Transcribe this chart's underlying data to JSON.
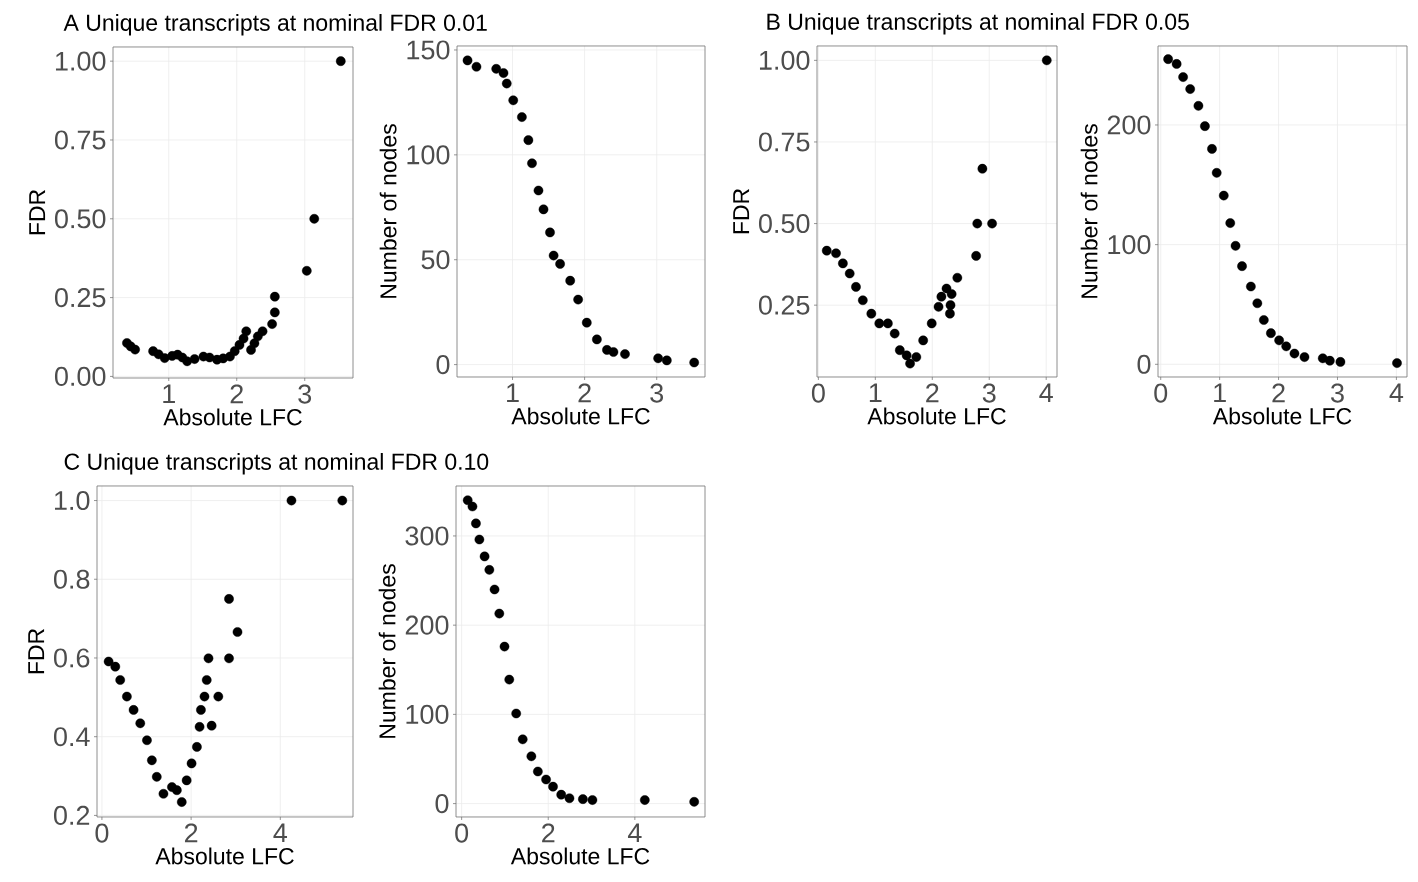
{
  "chart_data": [
    {
      "type": "scatter",
      "title": "A Unique transcripts at nominal FDR 0.01",
      "xlabel": "Absolute LFC",
      "ylabel": "FDR",
      "color": "#000000",
      "marker": "circle",
      "grid": true,
      "x": [
        0.385,
        0.44,
        0.505,
        0.77,
        0.85,
        0.94,
        1.05,
        1.13,
        1.2,
        1.27,
        1.38,
        1.51,
        1.6,
        1.71,
        1.8,
        1.9,
        1.97,
        2.04,
        2.1,
        2.14,
        2.21,
        2.26,
        2.31,
        2.38,
        2.52,
        2.56,
        2.56,
        3.03,
        3.14,
        3.53
      ],
      "values": [
        0.106,
        0.095,
        0.085,
        0.08,
        0.07,
        0.058,
        0.065,
        0.069,
        0.06,
        0.048,
        0.055,
        0.063,
        0.06,
        0.053,
        0.057,
        0.063,
        0.08,
        0.1,
        0.12,
        0.143,
        0.084,
        0.105,
        0.127,
        0.143,
        0.166,
        0.203,
        0.253,
        0.335,
        0.5,
        1.0
      ],
      "xlim": [
        0.18,
        3.71
      ],
      "ylim": [
        -0.005,
        1.045
      ],
      "xticks": [
        1,
        2,
        3
      ],
      "yticks": [
        {
          "value": 0,
          "label": "0.00"
        },
        {
          "value": 0.25,
          "label": "0.25"
        },
        {
          "value": 0.5,
          "label": "0.50"
        },
        {
          "value": 0.75,
          "label": "0.75"
        },
        {
          "value": 1,
          "label": "1.00"
        }
      ]
    },
    {
      "type": "scatter",
      "xlabel": "Absolute LFC",
      "ylabel": "Number of nodes",
      "color": "#000000",
      "marker": "circle",
      "grid": true,
      "x": [
        0.376,
        0.5,
        0.774,
        0.875,
        0.92,
        1.01,
        1.13,
        1.22,
        1.27,
        1.36,
        1.43,
        1.52,
        1.57,
        1.66,
        1.8,
        1.91,
        2.03,
        2.17,
        2.31,
        2.4,
        2.56,
        3.02,
        3.14,
        3.52
      ],
      "values": [
        145,
        142,
        141,
        139,
        134,
        126,
        118,
        107,
        96,
        83,
        74,
        63,
        52,
        48,
        40,
        31,
        20,
        12,
        7,
        6,
        5,
        3,
        2,
        1
      ],
      "xlim": [
        0.23,
        3.67
      ],
      "ylim": [
        -5.9,
        151.9
      ],
      "xticks": [
        1,
        2,
        3
      ],
      "yticks": [
        0,
        50,
        100,
        150
      ]
    },
    {
      "type": "scatter",
      "title": "B Unique transcripts at nominal FDR 0.05",
      "xlabel": "Absolute LFC",
      "ylabel": "FDR",
      "color": "#000000",
      "marker": "circle",
      "grid": true,
      "x": [
        0.147,
        0.31,
        0.43,
        0.55,
        0.66,
        0.78,
        0.93,
        1.07,
        1.22,
        1.34,
        1.43,
        1.55,
        1.61,
        1.72,
        1.84,
        1.99,
        2.11,
        2.16,
        2.25,
        2.31,
        2.32,
        2.34,
        2.44,
        2.77,
        2.79,
        2.88,
        3.05,
        4.01
      ],
      "values": [
        0.417,
        0.409,
        0.378,
        0.347,
        0.306,
        0.265,
        0.224,
        0.194,
        0.194,
        0.163,
        0.112,
        0.096,
        0.071,
        0.091,
        0.142,
        0.194,
        0.245,
        0.276,
        0.301,
        0.224,
        0.25,
        0.284,
        0.334,
        0.401,
        0.5,
        0.668,
        0.5,
        1.0
      ],
      "xlim": [
        -0.024,
        4.19
      ],
      "ylim": [
        0.03,
        1.044
      ],
      "xticks": [
        0,
        1,
        2,
        3,
        4
      ],
      "yticks": [
        {
          "value": 0.25,
          "label": "0.25"
        },
        {
          "value": 0.5,
          "label": "0.50"
        },
        {
          "value": 0.75,
          "label": "0.75"
        },
        {
          "value": 1,
          "label": "1.00"
        }
      ]
    },
    {
      "type": "scatter",
      "xlabel": "Absolute LFC",
      "ylabel": "Number of nodes",
      "color": "#000000",
      "marker": "circle",
      "grid": true,
      "x": [
        0.126,
        0.27,
        0.38,
        0.5,
        0.64,
        0.75,
        0.87,
        0.95,
        1.07,
        1.18,
        1.27,
        1.38,
        1.53,
        1.64,
        1.75,
        1.87,
        2.01,
        2.13,
        2.27,
        2.44,
        2.75,
        2.87,
        3.05,
        4.01
      ],
      "values": [
        255,
        251,
        240,
        230,
        216,
        199,
        180,
        160,
        141,
        118,
        99,
        82,
        65,
        51,
        37,
        26,
        20,
        15,
        9,
        6,
        5,
        3,
        2,
        1
      ],
      "xlim": [
        -0.046,
        4.18
      ],
      "ylim": [
        -10.6,
        266
      ],
      "xticks": [
        0,
        1,
        2,
        3,
        4
      ],
      "yticks": [
        0,
        100,
        200
      ]
    },
    {
      "type": "scatter",
      "title": "C Unique transcripts at nominal FDR 0.10",
      "xlabel": "Absolute LFC",
      "ylabel": "FDR",
      "color": "#000000",
      "marker": "circle",
      "grid": true,
      "x": [
        0.15,
        0.3,
        0.41,
        0.56,
        0.71,
        0.86,
        1.01,
        1.12,
        1.23,
        1.38,
        1.57,
        1.68,
        1.79,
        1.9,
        2.01,
        2.13,
        2.19,
        2.22,
        2.3,
        2.35,
        2.39,
        2.46,
        2.61,
        2.85,
        2.85,
        3.04,
        4.25,
        5.39
      ],
      "values": [
        0.591,
        0.578,
        0.544,
        0.502,
        0.468,
        0.434,
        0.391,
        0.34,
        0.298,
        0.255,
        0.272,
        0.264,
        0.234,
        0.289,
        0.332,
        0.374,
        0.425,
        0.468,
        0.502,
        0.544,
        0.599,
        0.428,
        0.502,
        0.599,
        0.75,
        0.666,
        1.0,
        1.0
      ],
      "xlim": [
        -0.11,
        5.63
      ],
      "ylim": [
        0.196,
        1.037
      ],
      "xticks": [
        0,
        2,
        4
      ],
      "yticks": [
        0.2,
        0.4,
        0.6,
        0.8,
        {
          "value": 1,
          "label": "1.0"
        }
      ]
    },
    {
      "type": "scatter",
      "xlabel": "Absolute LFC",
      "ylabel": "Number of nodes",
      "color": "#000000",
      "marker": "circle",
      "grid": true,
      "x": [
        0.14,
        0.25,
        0.33,
        0.41,
        0.53,
        0.64,
        0.76,
        0.87,
        0.99,
        1.1,
        1.26,
        1.41,
        1.61,
        1.76,
        1.95,
        2.11,
        2.3,
        2.49,
        2.8,
        3.02,
        4.23,
        5.37
      ],
      "values": [
        340,
        333,
        314,
        296,
        277,
        262,
        240,
        213,
        176,
        139,
        101,
        72,
        53,
        36,
        27,
        19,
        10,
        6,
        5,
        4,
        4,
        2
      ],
      "xlim": [
        -0.13,
        5.62
      ],
      "ylim": [
        -15,
        356
      ],
      "xticks": [
        0,
        2,
        4
      ],
      "yticks": [
        0,
        100,
        200,
        300
      ]
    }
  ]
}
